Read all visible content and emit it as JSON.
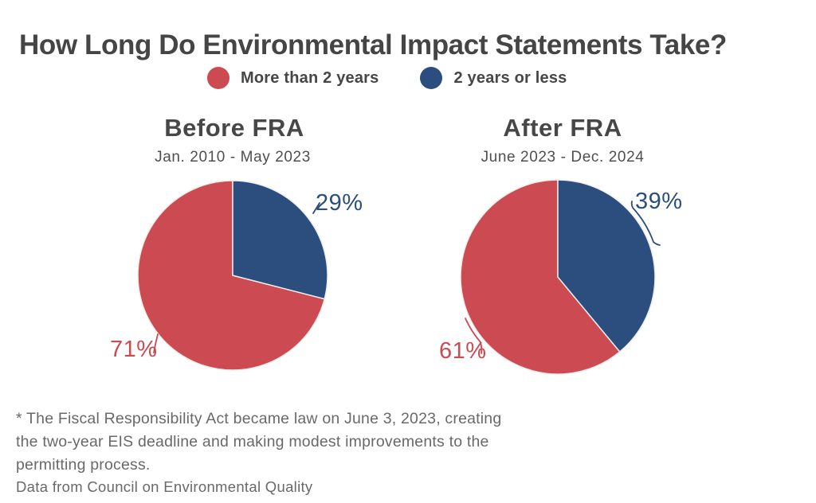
{
  "title": "How Long Do Environmental Impact Statements Take?",
  "legend": {
    "items": [
      {
        "label": "More than 2 years",
        "color": "#CC4B52"
      },
      {
        "label": "2 years or less",
        "color": "#2B4E7E"
      }
    ]
  },
  "chart_data": [
    {
      "type": "pie",
      "title": "Before FRA",
      "subtitle": "Jan. 2010 - May 2023",
      "start_angle": "12 o'clock",
      "direction": "clockwise",
      "slices": [
        {
          "label": "2 years or less",
          "value": 29,
          "pct_label": "29%",
          "color": "#2B4E7E"
        },
        {
          "label": "More than 2 years",
          "value": 71,
          "pct_label": "71%",
          "color": "#CC4B52"
        }
      ]
    },
    {
      "type": "pie",
      "title": "After FRA",
      "subtitle": "June 2023 - Dec. 2024",
      "start_angle": "12 o'clock",
      "direction": "clockwise",
      "slices": [
        {
          "label": "2 years or less",
          "value": 39,
          "pct_label": "39%",
          "color": "#2B4E7E"
        },
        {
          "label": "More than 2 years",
          "value": 61,
          "pct_label": "61%",
          "color": "#CC4B52"
        }
      ]
    }
  ],
  "footnote": {
    "lines": [
      "* The Fiscal Responsibility Act became law on June 3, 2023, creating",
      "the two-year EIS deadline and making modest improvements to the",
      "permitting process."
    ]
  },
  "source": "Data from Council on Environmental Quality",
  "colors": {
    "red": "#CC4B52",
    "blue": "#2B4E7E",
    "title_text": "#454545",
    "body_text": "#696969",
    "background": "#FFFFFF"
  }
}
